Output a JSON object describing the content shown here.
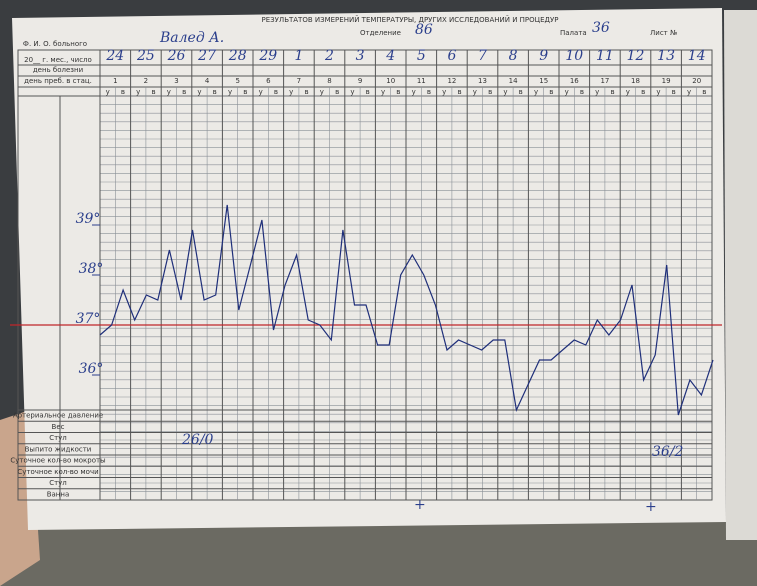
{
  "header": {
    "patient_label": "Ф. И. О. больного",
    "patient_name": "Валед А.",
    "title": "РЕЗУЛЬТАТОВ ИЗМЕРЕНИЙ ТЕМПЕРАТУРЫ, ДРУГИХ ИССЛЕДОВАНИЙ И ПРОЦЕДУР",
    "department_label": "Отделение",
    "department": "86",
    "ward_label": "Палата",
    "ward": "36",
    "sheet_label": "Лист №"
  },
  "row_labels": {
    "date": "20__ г. мес., число",
    "illness_day": "день болезни",
    "stay_day": "день преб. в стац."
  },
  "dates": [
    "24",
    "25",
    "26",
    "27",
    "28",
    "29",
    "1",
    "2",
    "3",
    "4",
    "5",
    "6",
    "7",
    "8",
    "9",
    "10",
    "11",
    "12",
    "13",
    "14"
  ],
  "stay_days": [
    1,
    2,
    3,
    4,
    5,
    6,
    7,
    8,
    9,
    10,
    11,
    12,
    13,
    14,
    15,
    16,
    17,
    18,
    19,
    20
  ],
  "shift_labels": [
    "у",
    "в"
  ],
  "temperature": {
    "ylim": [
      35,
      40
    ],
    "yticks": [
      {
        "value": 39,
        "label": "39°"
      },
      {
        "value": 38,
        "label": "38°"
      },
      {
        "value": 37,
        "label": "37°"
      },
      {
        "value": 36,
        "label": "36°"
      }
    ],
    "values": [
      36.8,
      37.0,
      37.7,
      37.1,
      37.6,
      37.5,
      38.5,
      37.5,
      38.9,
      37.5,
      37.6,
      39.4,
      37.3,
      38.2,
      39.1,
      36.9,
      37.8,
      38.4,
      37.1,
      37.0,
      36.7,
      38.9,
      37.4,
      37.4,
      36.6,
      36.6,
      38.0,
      38.4,
      38.0,
      37.4,
      36.5,
      36.7,
      36.6,
      36.5,
      36.7,
      36.7,
      35.3,
      35.8,
      36.3,
      36.3,
      36.5,
      36.7,
      36.6,
      37.1,
      36.8,
      37.1,
      37.8,
      35.9,
      36.4,
      38.2,
      35.2,
      35.9,
      35.6,
      36.3
    ]
  },
  "bottom_rows": [
    "Артериальное давление",
    "Вес",
    "Стул",
    "Выпито жидкости",
    "Суточное кол-во мокроты",
    "Суточное кол-во мочи",
    "Стул",
    "Ванна"
  ],
  "annotations": [
    "26/0",
    "36/2",
    "+",
    "+"
  ]
}
